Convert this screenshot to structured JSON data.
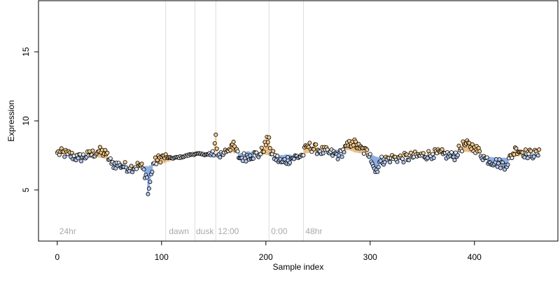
{
  "chart_data": {
    "type": "scatter",
    "title": "",
    "xlabel": "Sample index",
    "ylabel": "Expression",
    "xlim": [
      -18,
      480
    ],
    "ylim": [
      1.3,
      18.7
    ],
    "xticks": [
      0,
      100,
      200,
      300,
      400
    ],
    "yticks": [
      5,
      10,
      15
    ],
    "grid": false,
    "legend": "none",
    "vlines": [
      104,
      132,
      152,
      203,
      236
    ],
    "annotations": [
      {
        "x": 2,
        "y": 2.0,
        "text": "24hr"
      },
      {
        "x": 107,
        "y": 2.0,
        "text": "dawn"
      },
      {
        "x": 133,
        "y": 2.0,
        "text": "dusk"
      },
      {
        "x": 154,
        "y": 2.0,
        "text": "12:00"
      },
      {
        "x": 205,
        "y": 2.0,
        "text": "0:00"
      },
      {
        "x": 238,
        "y": 2.0,
        "text": "48hr"
      }
    ],
    "anchor_points": [
      [
        0,
        7.7
      ],
      [
        10,
        7.6
      ],
      [
        20,
        7.3
      ],
      [
        30,
        7.5
      ],
      [
        40,
        7.8
      ],
      [
        47,
        7.6
      ],
      [
        52,
        6.9
      ],
      [
        60,
        6.8
      ],
      [
        70,
        6.6
      ],
      [
        80,
        6.8
      ],
      [
        86,
        5.9
      ],
      [
        87,
        4.7
      ],
      [
        92,
        6.9
      ],
      [
        100,
        7.4
      ],
      [
        110,
        7.3
      ],
      [
        120,
        7.4
      ],
      [
        130,
        7.6
      ],
      [
        140,
        7.6
      ],
      [
        150,
        7.5
      ],
      [
        152,
        9.0
      ],
      [
        154,
        7.5
      ],
      [
        160,
        7.7
      ],
      [
        168,
        8.3
      ],
      [
        175,
        7.3
      ],
      [
        185,
        7.5
      ],
      [
        195,
        7.6
      ],
      [
        203,
        8.8
      ],
      [
        205,
        7.6
      ],
      [
        215,
        7.0
      ],
      [
        225,
        7.3
      ],
      [
        235,
        7.5
      ],
      [
        240,
        8.2
      ],
      [
        250,
        7.9
      ],
      [
        260,
        7.7
      ],
      [
        270,
        7.5
      ],
      [
        283,
        8.5
      ],
      [
        290,
        8.0
      ],
      [
        300,
        7.6
      ],
      [
        305,
        6.3
      ],
      [
        310,
        7.1
      ],
      [
        320,
        7.3
      ],
      [
        330,
        7.3
      ],
      [
        340,
        7.4
      ],
      [
        350,
        7.5
      ],
      [
        360,
        7.6
      ],
      [
        370,
        7.6
      ],
      [
        380,
        7.4
      ],
      [
        390,
        8.3
      ],
      [
        400,
        8.1
      ],
      [
        410,
        7.3
      ],
      [
        420,
        7.0
      ],
      [
        430,
        6.8
      ],
      [
        440,
        8.0
      ],
      [
        450,
        7.6
      ],
      [
        460,
        7.6
      ]
    ],
    "colors": {
      "fill_high": "#f5c98a",
      "fill_low": "#b4c8f0",
      "fill_neutral": "#e9e9e9",
      "segment_high": "#e8b878",
      "segment_low": "#7fa6e0",
      "vline": "#dcdcdc",
      "annotation": "#a9a9a9"
    }
  }
}
